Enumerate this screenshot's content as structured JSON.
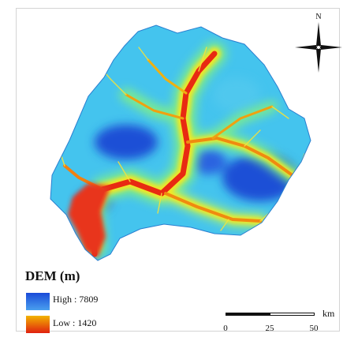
{
  "legend": {
    "title": "DEM (m)",
    "high_label": "High : 7809",
    "low_label": "Low : 1420"
  },
  "scale_bar": {
    "unit": "km",
    "ticks": [
      "0",
      "25",
      "50"
    ]
  },
  "north_arrow": {
    "label": "N"
  },
  "colors": {
    "high": "#1a4ad8",
    "mid_high": "#3ec8ee",
    "mid": "#5ee8a8",
    "mid_low": "#f0e020",
    "low": "#e02010"
  }
}
